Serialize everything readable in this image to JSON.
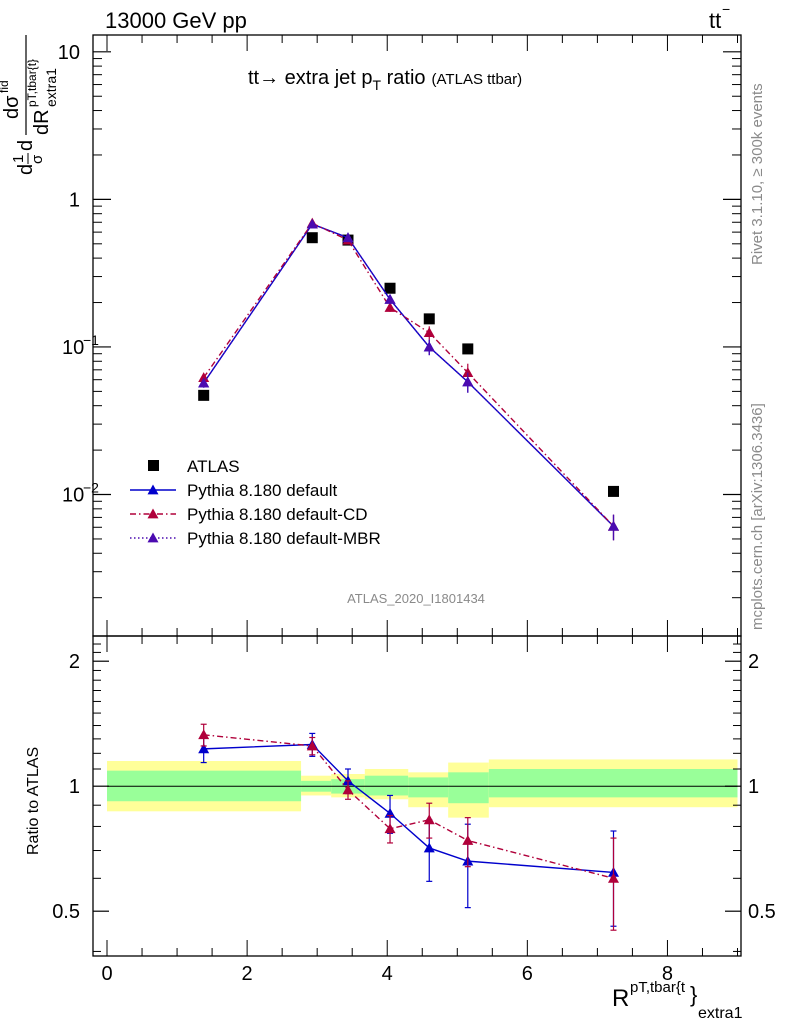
{
  "header": {
    "left": "13000 GeV pp",
    "right_main": "tt",
    "right_bar": "−"
  },
  "side_labels": {
    "rivet": "Rivet 3.1.10, ≥ 300k events",
    "mcplots": "mcplots.cern.ch [arXiv:1306.3436]"
  },
  "chart_data": [
    {
      "type": "scatter",
      "panel": "main",
      "title": {
        "prefix": "tt",
        "arrow": "→",
        "main": " extra jet p",
        "sub": "T",
        "rest": " ratio",
        "small": "(ATLAS ttbar)"
      },
      "ylabel": "dσ/dR^{pT,tbar{t}}_{extra1} (1/σ dσ^{fid})",
      "ylabel_parts": {
        "frac1": "1",
        "sigma": "σ",
        "d": "d",
        "top": "dσ",
        "fid": "fid",
        "bottom": "dR",
        "sup": "pT,tbar{t}",
        "sub": "extra1"
      },
      "y_scale": "log",
      "ylim": [
        0.0011,
        13
      ],
      "xlim": [
        -0.2,
        9.05
      ],
      "y_ticks": [
        {
          "value": 10,
          "label": "10"
        },
        {
          "value": 1,
          "label": "1"
        },
        {
          "value": 0.1,
          "label": "10",
          "exp": "−1"
        },
        {
          "value": 0.01,
          "label": "10",
          "exp": "−2"
        }
      ],
      "watermark": "ATLAS_2020_I1801434",
      "legend_position": "bottom-left",
      "series": [
        {
          "name": "ATLAS",
          "color": "#000000",
          "marker": "square",
          "line": "none",
          "x": [
            1.38,
            2.93,
            3.44,
            4.04,
            4.6,
            5.15,
            7.23
          ],
          "y": [
            0.047,
            0.55,
            0.53,
            0.25,
            0.155,
            0.097,
            0.0105
          ]
        },
        {
          "name": "Pythia 8.180 default",
          "color": "#0000cc",
          "marker": "triangle",
          "line": "solid",
          "x": [
            1.38,
            2.93,
            3.44,
            4.04,
            4.6,
            5.15,
            7.23
          ],
          "y": [
            0.057,
            0.68,
            0.55,
            0.21,
            0.1,
            0.058,
            0.0061
          ],
          "err": [
            0.004,
            0.04,
            0.03,
            0.015,
            0.012,
            0.009,
            0.0012
          ]
        },
        {
          "name": "Pythia 8.180 default-CD",
          "color": "#b0003a",
          "marker": "triangle",
          "line": "dashdot",
          "x": [
            1.38,
            2.93,
            3.44,
            4.04,
            4.6,
            5.15,
            7.23
          ],
          "y": [
            0.062,
            0.69,
            0.53,
            0.185,
            0.125,
            0.067,
            0.0061
          ],
          "err": [
            0.004,
            0.04,
            0.03,
            0.012,
            0.013,
            0.01,
            0.0012
          ]
        },
        {
          "name": "Pythia 8.180 default-MBR",
          "color": "#4b0bb0",
          "marker": "triangle",
          "line": "dotted",
          "x": [
            1.38,
            2.93,
            3.44,
            4.04,
            4.6,
            5.15,
            7.23
          ],
          "y": [
            0.057,
            0.68,
            0.55,
            0.21,
            0.1,
            0.058,
            0.0061
          ],
          "err": [
            0.004,
            0.04,
            0.03,
            0.015,
            0.012,
            0.009,
            0.0012
          ]
        }
      ]
    },
    {
      "type": "scatter",
      "panel": "ratio",
      "ylabel": "Ratio to ATLAS",
      "xlabel": "R^{pT,tbar{t}}_{extra1}",
      "xlabel_parts": {
        "main": "R",
        "sup": "pT,tbar{t",
        "brace": "}",
        "sub": "extra1"
      },
      "xlim": [
        -0.2,
        9.05
      ],
      "ylim": [
        0.39,
        2.3
      ],
      "y_scale": "log",
      "x_ticks": [
        0,
        2,
        4,
        6,
        8
      ],
      "y_ticks": [
        {
          "value": 0.5,
          "label": "0.5"
        },
        {
          "value": 1,
          "label": "1"
        },
        {
          "value": 2,
          "label": "2"
        }
      ],
      "bands": {
        "edges": [
          0,
          2.77,
          3.2,
          3.68,
          4.3,
          4.87,
          5.45,
          9.0
        ],
        "yellow_low": [
          0.87,
          0.95,
          0.94,
          0.93,
          0.89,
          0.84,
          0.89
        ],
        "yellow_high": [
          1.15,
          1.06,
          1.07,
          1.1,
          1.08,
          1.14,
          1.16
        ],
        "green_low": [
          0.92,
          0.97,
          0.96,
          0.95,
          0.94,
          0.91,
          0.94
        ],
        "green_high": [
          1.09,
          1.03,
          1.04,
          1.06,
          1.05,
          1.08,
          1.1
        ],
        "yellow_color": "#ffff99",
        "green_color": "#99ff99"
      },
      "series": [
        {
          "name": "Pythia 8.180 default",
          "color": "#0000cc",
          "line": "solid",
          "x": [
            1.38,
            2.93,
            3.44,
            4.04,
            4.6,
            5.15,
            7.23
          ],
          "y": [
            1.23,
            1.26,
            1.03,
            0.86,
            0.71,
            0.66,
            0.62
          ],
          "err": [
            0.09,
            0.08,
            0.07,
            0.09,
            0.12,
            0.15,
            0.16
          ]
        },
        {
          "name": "Pythia 8.180 default-CD",
          "color": "#b0003a",
          "line": "dashdot",
          "x": [
            1.38,
            2.93,
            3.44,
            4.04,
            4.6,
            5.15,
            7.23
          ],
          "y": [
            1.33,
            1.25,
            0.98,
            0.79,
            0.83,
            0.74,
            0.6
          ],
          "err": [
            0.08,
            0.06,
            0.05,
            0.06,
            0.08,
            0.1,
            0.15
          ]
        }
      ]
    }
  ]
}
